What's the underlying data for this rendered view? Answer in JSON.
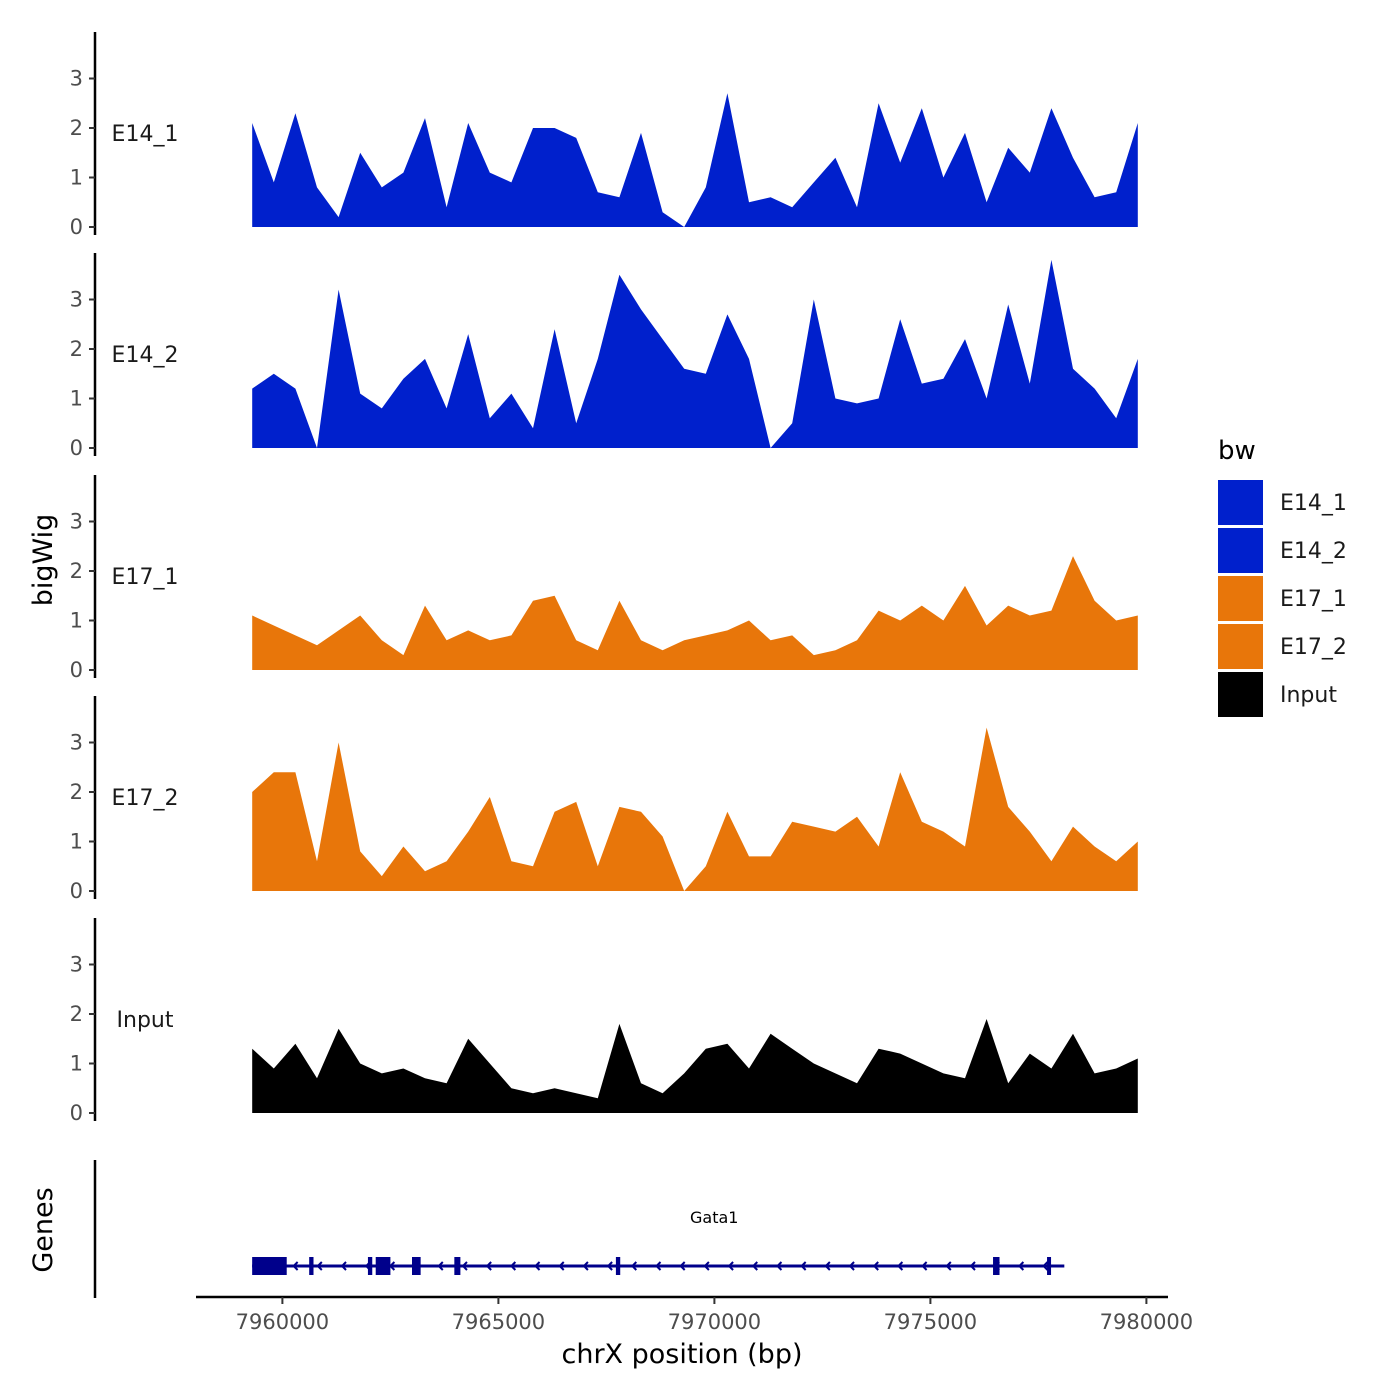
{
  "chart_data": {
    "type": "area",
    "title": "",
    "xlabel": "chrX position (bp)",
    "ylabel": "bigWig",
    "genes_panel_label": "Genes",
    "xlim": [
      7958000,
      7980500
    ],
    "x_ticks": [
      7960000,
      7965000,
      7970000,
      7975000,
      7980000
    ],
    "x_tick_labels": [
      "7960000",
      "7965000",
      "7970000",
      "7975000",
      "7980000"
    ],
    "ylim": [
      0,
      4
    ],
    "y_ticks": [
      0,
      1,
      2,
      3
    ],
    "y_tick_labels": [
      "0",
      "1",
      "2",
      "3"
    ],
    "legend": {
      "title": "bw",
      "position": "right",
      "items": [
        {
          "label": "E14_1",
          "color": "#0020CC"
        },
        {
          "label": "E14_2",
          "color": "#0020CC"
        },
        {
          "label": "E17_1",
          "color": "#E8760A"
        },
        {
          "label": "E17_2",
          "color": "#E8760A"
        },
        {
          "label": "Input",
          "color": "#000000"
        }
      ]
    },
    "x": [
      7959300,
      7959800,
      7960300,
      7960800,
      7961300,
      7961800,
      7962300,
      7962800,
      7963300,
      7963800,
      7964300,
      7964800,
      7965300,
      7965800,
      7966300,
      7966800,
      7967300,
      7967800,
      7968300,
      7968800,
      7969300,
      7969800,
      7970300,
      7970800,
      7971300,
      7971800,
      7972300,
      7972800,
      7973300,
      7973800,
      7974300,
      7974800,
      7975300,
      7975800,
      7976300,
      7976800,
      7977300,
      7977800,
      7978300,
      7978800,
      7979300,
      7979800
    ],
    "series": [
      {
        "name": "E14_1",
        "color": "#0020CC",
        "values": [
          2.1,
          0.9,
          2.3,
          0.8,
          0.2,
          1.5,
          0.8,
          1.1,
          2.2,
          0.4,
          2.1,
          1.1,
          0.9,
          2.0,
          2.0,
          1.8,
          0.7,
          0.6,
          1.9,
          0.3,
          0.0,
          0.8,
          2.7,
          0.5,
          0.6,
          0.4,
          0.9,
          1.4,
          0.4,
          2.5,
          1.3,
          2.4,
          1.0,
          1.9,
          0.5,
          1.6,
          1.1,
          2.4,
          1.4,
          0.6,
          0.7,
          2.1
        ]
      },
      {
        "name": "E14_2",
        "color": "#0020CC",
        "values": [
          1.2,
          1.5,
          1.2,
          0.0,
          3.2,
          1.1,
          0.8,
          1.4,
          1.8,
          0.8,
          2.3,
          0.6,
          1.1,
          0.4,
          2.4,
          0.5,
          1.8,
          3.5,
          2.8,
          2.2,
          1.6,
          1.5,
          2.7,
          1.8,
          0.0,
          0.5,
          3.0,
          1.0,
          0.9,
          1.0,
          2.6,
          1.3,
          1.4,
          2.2,
          1.0,
          2.9,
          1.3,
          3.8,
          1.6,
          1.2,
          0.6,
          1.8
        ]
      },
      {
        "name": "E17_1",
        "color": "#E8760A",
        "values": [
          1.1,
          0.9,
          0.7,
          0.5,
          0.8,
          1.1,
          0.6,
          0.3,
          1.3,
          0.6,
          0.8,
          0.6,
          0.7,
          1.4,
          1.5,
          0.6,
          0.4,
          1.4,
          0.6,
          0.4,
          0.6,
          0.7,
          0.8,
          1.0,
          0.6,
          0.7,
          0.3,
          0.4,
          0.6,
          1.2,
          1.0,
          1.3,
          1.0,
          1.7,
          0.9,
          1.3,
          1.1,
          1.2,
          2.3,
          1.4,
          1.0,
          1.1
        ]
      },
      {
        "name": "E17_2",
        "color": "#E8760A",
        "values": [
          2.0,
          2.4,
          2.4,
          0.6,
          3.0,
          0.8,
          0.3,
          0.9,
          0.4,
          0.6,
          1.2,
          1.9,
          0.6,
          0.5,
          1.6,
          1.8,
          0.5,
          1.7,
          1.6,
          1.1,
          0.0,
          0.5,
          1.6,
          0.7,
          0.7,
          1.4,
          1.3,
          1.2,
          1.5,
          0.9,
          2.4,
          1.4,
          1.2,
          0.9,
          3.3,
          1.7,
          1.2,
          0.6,
          1.3,
          0.9,
          0.6,
          1.0
        ]
      },
      {
        "name": "Input",
        "color": "#000000",
        "values": [
          1.3,
          0.9,
          1.4,
          0.7,
          1.7,
          1.0,
          0.8,
          0.9,
          0.7,
          0.6,
          1.5,
          1.0,
          0.5,
          0.4,
          0.5,
          0.4,
          0.3,
          1.8,
          0.6,
          0.4,
          0.8,
          1.3,
          1.4,
          0.9,
          1.6,
          1.3,
          1.0,
          0.8,
          0.6,
          1.3,
          1.2,
          1.0,
          0.8,
          0.7,
          1.9,
          0.6,
          1.2,
          0.9,
          1.6,
          0.8,
          0.9,
          1.1
        ]
      }
    ],
    "gene_track": {
      "gene": "Gata1",
      "strand": "-",
      "color": "#00008B",
      "start": 7959300,
      "end": 7978100,
      "exons": [
        [
          7959300,
          7960100
        ],
        [
          7960620,
          7960720
        ],
        [
          7961980,
          7962080
        ],
        [
          7962160,
          7962500
        ],
        [
          7963000,
          7963200
        ],
        [
          7963980,
          7964120
        ],
        [
          7967720,
          7967820
        ],
        [
          7976450,
          7976600
        ],
        [
          7977700,
          7977780
        ]
      ]
    }
  }
}
